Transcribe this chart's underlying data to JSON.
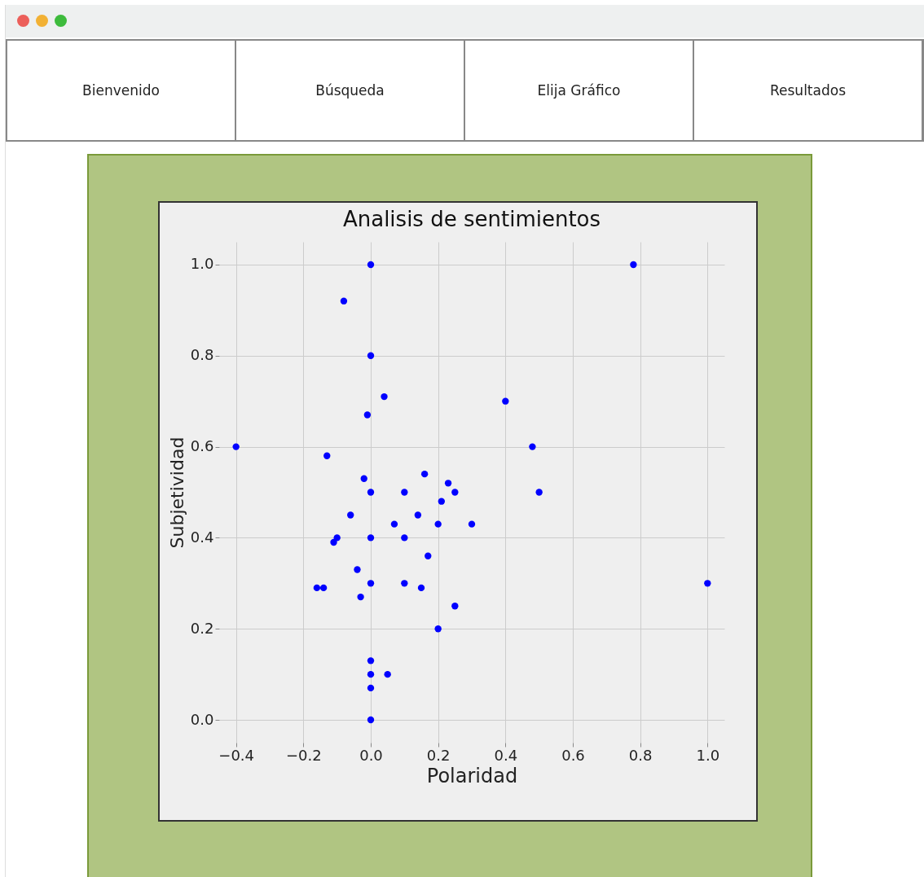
{
  "chart_data": {
    "type": "scatter",
    "title": "Analisis de sentimientos",
    "xlabel": "Polaridad",
    "ylabel": "Subjetividad",
    "annotations": [
      "Bienvenido",
      "Búsqueda",
      "Elija Gráfico",
      "Resultados"
    ],
    "x": [
      0,
      -0.08,
      0.78,
      0,
      0.04,
      -0.01,
      0.4,
      -0.4,
      0.48,
      -0.13,
      0.5,
      -0.02,
      0.16,
      0.23,
      0.25,
      0,
      0.1,
      0.21,
      -0.06,
      0.14,
      0.2,
      0.3,
      0.07,
      -0.1,
      -0.11,
      0,
      0.1,
      0.17,
      -0.04,
      -0.16,
      -0.14,
      0,
      0.1,
      0.15,
      -0.03,
      0.25,
      1.0,
      0.2,
      0,
      0,
      0.05,
      0,
      0
    ],
    "series": [
      {
        "color": "#0000ff",
        "values": [
          1.0,
          0.92,
          1.0,
          0.8,
          0.71,
          0.67,
          0.7,
          0.6,
          0.6,
          0.58,
          0.5,
          0.53,
          0.54,
          0.52,
          0.5,
          0.5,
          0.5,
          0.48,
          0.45,
          0.45,
          0.43,
          0.43,
          0.43,
          0.4,
          0.39,
          0.4,
          0.4,
          0.36,
          0.33,
          0.29,
          0.29,
          0.3,
          0.3,
          0.29,
          0.27,
          0.25,
          0.3,
          0.2,
          0.13,
          0.1,
          0.1,
          0.07,
          0
        ]
      }
    ],
    "xlim": [
      -0.45,
      1.05
    ],
    "ylim": [
      -0.05,
      1.05
    ],
    "xticks": [
      -0.4,
      -0.2,
      {
        "value": 0,
        "label": "0.0"
      },
      0.2,
      0.4,
      0.6,
      0.8,
      {
        "value": 1,
        "label": "1.0"
      }
    ],
    "yticks": [
      {
        "value": 0,
        "label": "0.0"
      },
      0.2,
      0.4,
      0.6,
      0.8,
      {
        "value": 1,
        "label": "1.0"
      }
    ],
    "grid": true,
    "marker": "circle"
  }
}
